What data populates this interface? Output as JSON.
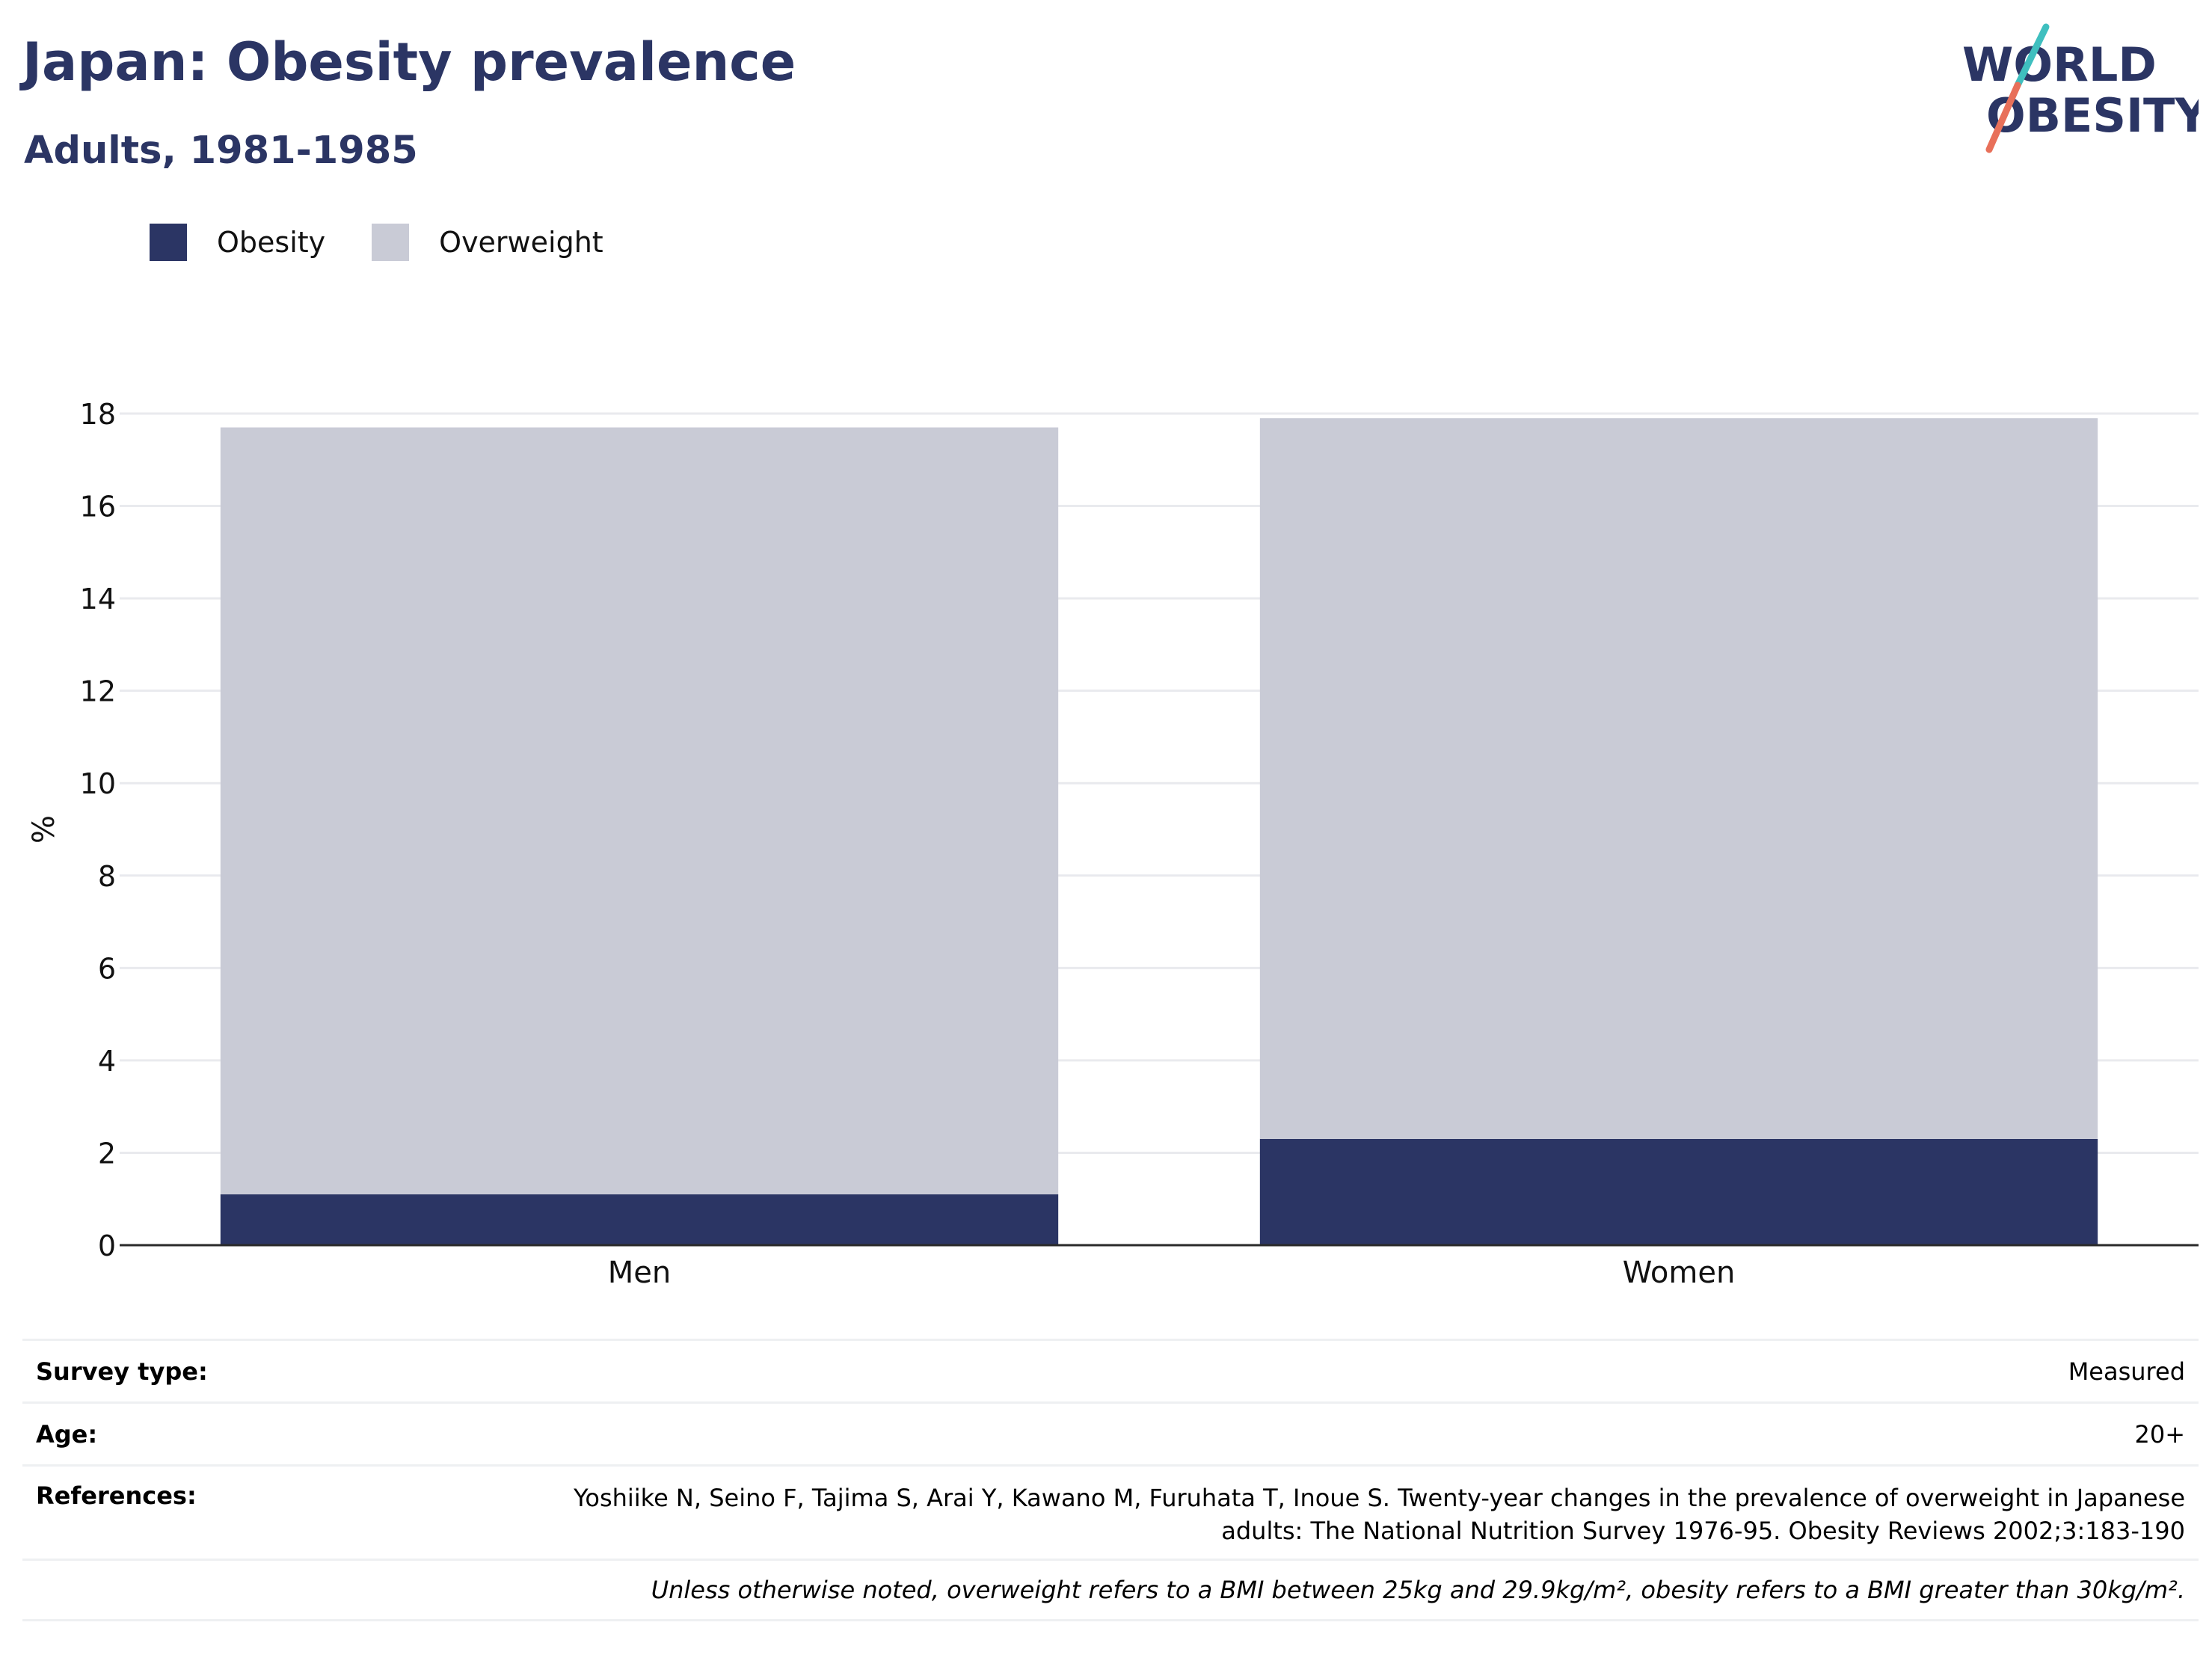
{
  "header": {
    "title": "Japan: Obesity prevalence",
    "subtitle": "Adults, 1981-1985"
  },
  "logo": {
    "text_line1": "WORLD",
    "text_line2": "OBESITY",
    "color": "#2b3564",
    "accent_colors": [
      "#3fbfbf",
      "#e8705a"
    ]
  },
  "legend": {
    "items": [
      {
        "label": "Obesity",
        "color": "#2b3564"
      },
      {
        "label": "Overweight",
        "color": "#c9cbd6"
      }
    ]
  },
  "chart_data": {
    "type": "bar",
    "stacked": true,
    "categories": [
      "Men",
      "Women"
    ],
    "series": [
      {
        "name": "Obesity",
        "values": [
          1.1,
          2.3
        ],
        "color": "#2b3564"
      },
      {
        "name": "Overweight",
        "values": [
          16.6,
          15.6
        ],
        "color": "#c9cbd6"
      }
    ],
    "ylabel": "%",
    "ylim": [
      0,
      18
    ],
    "yticks": [
      0,
      2,
      4,
      6,
      8,
      10,
      12,
      14,
      16,
      18
    ],
    "grid": true,
    "legend_position": "top-left"
  },
  "info": {
    "survey_type": {
      "label": "Survey type:",
      "value": "Measured"
    },
    "age": {
      "label": "Age:",
      "value": "20+"
    },
    "references": {
      "label": "References:",
      "line1": "Yoshiike N, Seino F, Tajima S, Arai Y, Kawano M, Furuhata T, Inoue S. Twenty-year changes in the prevalence of overweight in Japanese",
      "line2": "adults: The National Nutrition Survey 1976-95. Obesity Reviews 2002;3:183-190"
    },
    "note": "Unless otherwise noted, overweight refers to a BMI between 25kg and 29.9kg/m², obesity refers to a BMI greater than 30kg/m²."
  }
}
